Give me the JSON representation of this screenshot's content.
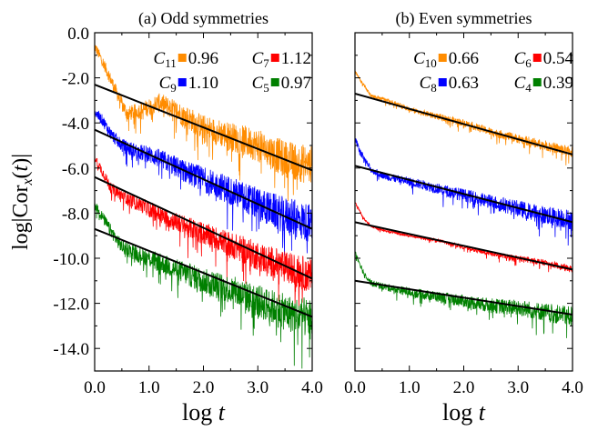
{
  "chart_data": [
    {
      "type": "line",
      "title": "(a) Odd  symmetries",
      "xlabel": "log t",
      "ylabel": "log|Cor_x(t)|",
      "xlim": [
        0.0,
        4.0
      ],
      "ylim": [
        -15.0,
        0.0
      ],
      "xticks": [
        "0.0",
        "1.0",
        "2.0",
        "3.0",
        "4.0"
      ],
      "yticks": [
        "0.0",
        "-2.0",
        "-4.0",
        "-6.0",
        "-8.0",
        "-10.0",
        "-12.0",
        "-14.0"
      ],
      "legend": [
        {
          "label": "C",
          "sub": "11",
          "value": "0.96",
          "color": "#ff8c00"
        },
        {
          "label": "C",
          "sub": "7",
          "value": "1.12",
          "color": "#ff0000"
        },
        {
          "label": "C",
          "sub": "9",
          "value": "1.10",
          "color": "#0000ff"
        },
        {
          "label": "C",
          "sub": "5",
          "value": "0.97",
          "color": "#008000"
        }
      ],
      "series": [
        {
          "color": "#ff8c00",
          "fit": {
            "x": [
              0.0,
              4.0
            ],
            "y": [
              -2.3,
              -6.1
            ]
          },
          "signal": {
            "x": [
              0.0,
              0.15,
              0.3,
              0.45,
              0.6,
              0.9,
              1.2,
              1.6,
              2.0,
              2.5,
              3.0,
              3.5,
              4.0
            ],
            "y": [
              -0.6,
              -1.3,
              -2.1,
              -2.9,
              -3.6,
              -3.4,
              -3.1,
              -3.6,
              -4.2,
              -4.6,
              -5.0,
              -5.6,
              -5.9
            ]
          },
          "noise_amp": 0.9
        },
        {
          "color": "#0000ff",
          "fit": {
            "x": [
              0.0,
              4.0
            ],
            "y": [
              -4.3,
              -8.7
            ]
          },
          "signal": {
            "x": [
              0.0,
              0.15,
              0.3,
              0.5,
              0.8,
              1.0,
              1.3,
              1.7,
              2.0,
              2.5,
              3.0,
              3.5,
              4.0
            ],
            "y": [
              -3.5,
              -3.9,
              -4.5,
              -5.0,
              -5.3,
              -5.4,
              -5.7,
              -6.2,
              -6.5,
              -7.0,
              -7.6,
              -8.1,
              -8.5
            ]
          },
          "noise_amp": 0.9
        },
        {
          "color": "#ff0000",
          "fit": {
            "x": [
              0.0,
              4.0
            ],
            "y": [
              -6.4,
              -10.9
            ]
          },
          "signal": {
            "x": [
              0.0,
              0.15,
              0.3,
              0.5,
              0.8,
              1.0,
              1.3,
              1.7,
              2.0,
              2.5,
              3.0,
              3.5,
              4.0
            ],
            "y": [
              -5.5,
              -6.2,
              -6.9,
              -7.2,
              -7.6,
              -7.8,
              -8.2,
              -8.6,
              -8.9,
              -9.4,
              -9.9,
              -10.4,
              -10.8
            ]
          },
          "noise_amp": 0.8
        },
        {
          "color": "#008000",
          "fit": {
            "x": [
              0.0,
              4.0
            ],
            "y": [
              -8.7,
              -12.6
            ]
          },
          "signal": {
            "x": [
              0.0,
              0.15,
              0.3,
              0.5,
              0.8,
              1.0,
              1.3,
              1.7,
              2.0,
              2.5,
              3.0,
              3.5,
              4.0
            ],
            "y": [
              -7.6,
              -8.2,
              -8.8,
              -9.5,
              -9.8,
              -10.0,
              -10.3,
              -10.7,
              -11.0,
              -11.4,
              -11.9,
              -12.4,
              -12.7
            ]
          },
          "noise_amp": 0.9
        }
      ]
    },
    {
      "type": "line",
      "title": "(b) Even  symmetries",
      "xlabel": "log t",
      "ylabel": "",
      "xlim": [
        0.0,
        4.0
      ],
      "ylim": [
        -15.0,
        0.0
      ],
      "xticks": [
        "0.0",
        "1.0",
        "2.0",
        "3.0",
        "4.0"
      ],
      "yticks": [],
      "legend": [
        {
          "label": "C",
          "sub": "10",
          "value": "0.66",
          "color": "#ff8c00"
        },
        {
          "label": "C",
          "sub": "6",
          "value": "0.54",
          "color": "#ff0000"
        },
        {
          "label": "C",
          "sub": "8",
          "value": "0.63",
          "color": "#0000ff"
        },
        {
          "label": "C",
          "sub": "4",
          "value": "0.39",
          "color": "#008000"
        }
      ],
      "series": [
        {
          "color": "#ff8c00",
          "fit": {
            "x": [
              0.0,
              4.0
            ],
            "y": [
              -2.7,
              -5.4
            ]
          },
          "signal": {
            "x": [
              0.0,
              0.15,
              0.3,
              0.6,
              1.0,
              1.5,
              2.0,
              2.5,
              3.0,
              3.5,
              4.0
            ],
            "y": [
              -1.7,
              -2.3,
              -2.8,
              -3.0,
              -3.4,
              -3.7,
              -4.0,
              -4.4,
              -4.7,
              -5.0,
              -5.3
            ]
          },
          "noise_amp": 0.25
        },
        {
          "color": "#0000ff",
          "fit": {
            "x": [
              0.0,
              4.0
            ],
            "y": [
              -5.9,
              -8.4
            ]
          },
          "signal": {
            "x": [
              0.0,
              0.15,
              0.3,
              0.6,
              1.0,
              1.5,
              2.0,
              2.5,
              3.0,
              3.5,
              4.0
            ],
            "y": [
              -4.7,
              -5.5,
              -6.1,
              -6.4,
              -6.6,
              -6.9,
              -7.2,
              -7.5,
              -7.8,
              -8.1,
              -8.3
            ]
          },
          "noise_amp": 0.45
        },
        {
          "color": "#ff0000",
          "fit": {
            "x": [
              0.0,
              4.0
            ],
            "y": [
              -8.4,
              -10.5
            ]
          },
          "signal": {
            "x": [
              0.0,
              0.15,
              0.3,
              0.6,
              1.0,
              1.5,
              2.0,
              2.5,
              3.0,
              3.5,
              4.0
            ],
            "y": [
              -7.5,
              -8.2,
              -8.6,
              -8.8,
              -9.0,
              -9.2,
              -9.5,
              -9.8,
              -10.0,
              -10.2,
              -10.5
            ]
          },
          "noise_amp": 0.15
        },
        {
          "color": "#008000",
          "fit": {
            "x": [
              0.0,
              4.0
            ],
            "y": [
              -11.0,
              -12.5
            ]
          },
          "signal": {
            "x": [
              0.0,
              0.15,
              0.3,
              0.6,
              1.0,
              1.5,
              2.0,
              2.5,
              3.0,
              3.5,
              4.0
            ],
            "y": [
              -9.7,
              -10.6,
              -11.1,
              -11.3,
              -11.5,
              -11.7,
              -11.9,
              -12.1,
              -12.2,
              -12.4,
              -12.6
            ]
          },
          "noise_amp": 0.45
        }
      ]
    }
  ]
}
